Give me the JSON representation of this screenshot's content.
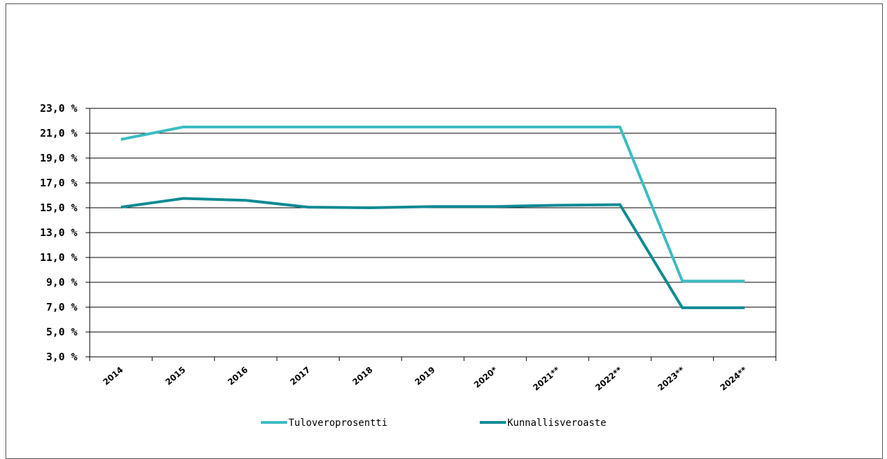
{
  "chart_data": {
    "type": "line",
    "title": "",
    "xlabel": "",
    "ylabel": "",
    "categories": [
      "2014",
      "2015",
      "2016",
      "2017",
      "2018",
      "2019",
      "2020*",
      "2021**",
      "2022**",
      "2023**",
      "2024**"
    ],
    "ylim": [
      3.0,
      23.0
    ],
    "yticks": [
      3.0,
      5.0,
      7.0,
      9.0,
      11.0,
      13.0,
      15.0,
      17.0,
      19.0,
      21.0,
      23.0
    ],
    "ytick_labels": [
      "3,0 %",
      "5,0 %",
      "7,0 %",
      "9,0 %",
      "11,0 %",
      "13,0 %",
      "15,0 %",
      "17,0 %",
      "19,0 %",
      "21,0 %",
      "23,0 %"
    ],
    "grid": true,
    "legend_position": "bottom",
    "series": [
      {
        "name": "Tuloveroprosentti",
        "color": "#3cbcc3",
        "values": [
          20.5,
          21.5,
          21.5,
          21.5,
          21.5,
          21.5,
          21.5,
          21.5,
          21.5,
          9.1,
          9.1
        ]
      },
      {
        "name": "Kunnallisveroaste",
        "color": "#0d8a93",
        "values": [
          15.05,
          15.75,
          15.6,
          15.05,
          15.0,
          15.1,
          15.1,
          15.2,
          15.25,
          6.95,
          6.95
        ]
      }
    ]
  }
}
